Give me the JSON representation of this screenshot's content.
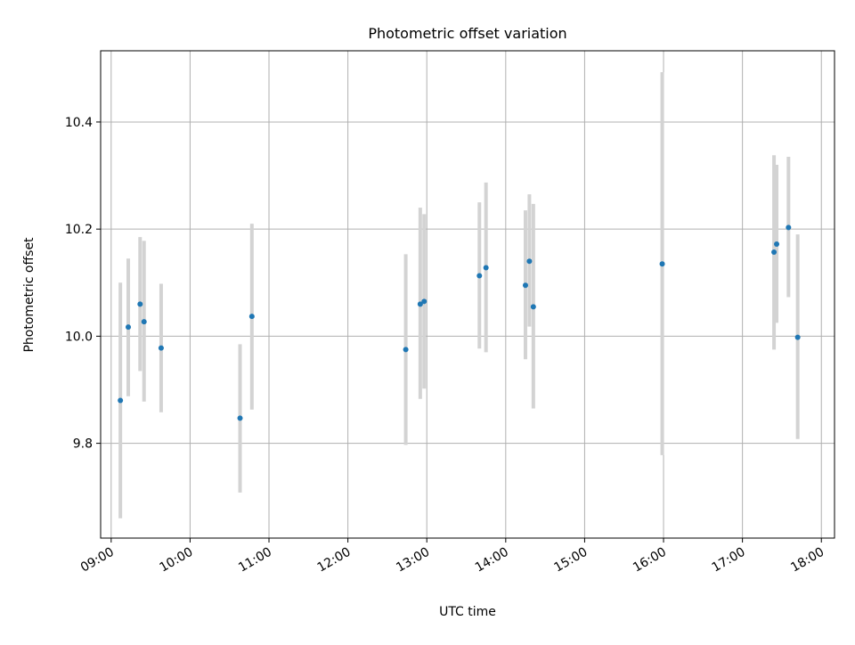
{
  "chart_data": {
    "type": "scatter",
    "title": "Photometric offset variation",
    "xlabel": "UTC time",
    "ylabel": "Photometric offset",
    "x_ticks": [
      "09:00",
      "10:00",
      "11:00",
      "12:00",
      "13:00",
      "14:00",
      "15:00",
      "16:00",
      "17:00",
      "18:00"
    ],
    "y_ticks": [
      "9.8",
      "10.0",
      "10.2",
      "10.4"
    ],
    "xlim": [
      "08:52",
      "18:10"
    ],
    "ylim": [
      9.623,
      10.533
    ],
    "grid": true,
    "colors": {
      "point": "#1f77b4",
      "errorbar": "#d3d3d3",
      "grid": "#b0b0b0"
    },
    "points": [
      {
        "x": "09:07",
        "y": 9.88,
        "yerr_low": 9.66,
        "yerr_high": 10.1
      },
      {
        "x": "09:13",
        "y": 10.017,
        "yerr_low": 9.888,
        "yerr_high": 10.145
      },
      {
        "x": "09:22",
        "y": 10.06,
        "yerr_low": 9.935,
        "yerr_high": 10.185
      },
      {
        "x": "09:25",
        "y": 10.027,
        "yerr_low": 9.878,
        "yerr_high": 10.178
      },
      {
        "x": "09:38",
        "y": 9.978,
        "yerr_low": 9.858,
        "yerr_high": 10.098
      },
      {
        "x": "10:38",
        "y": 9.847,
        "yerr_low": 9.708,
        "yerr_high": 9.985
      },
      {
        "x": "10:47",
        "y": 10.037,
        "yerr_low": 9.863,
        "yerr_high": 10.21
      },
      {
        "x": "12:44",
        "y": 9.975,
        "yerr_low": 9.797,
        "yerr_high": 10.153
      },
      {
        "x": "12:55",
        "y": 10.06,
        "yerr_low": 9.883,
        "yerr_high": 10.24
      },
      {
        "x": "12:58",
        "y": 10.065,
        "yerr_low": 9.902,
        "yerr_high": 10.228
      },
      {
        "x": "13:40",
        "y": 10.113,
        "yerr_low": 9.977,
        "yerr_high": 10.25
      },
      {
        "x": "13:45",
        "y": 10.128,
        "yerr_low": 9.97,
        "yerr_high": 10.287
      },
      {
        "x": "14:15",
        "y": 10.095,
        "yerr_low": 9.957,
        "yerr_high": 10.235
      },
      {
        "x": "14:18",
        "y": 10.14,
        "yerr_low": 10.018,
        "yerr_high": 10.265
      },
      {
        "x": "14:21",
        "y": 10.055,
        "yerr_low": 9.865,
        "yerr_high": 10.247
      },
      {
        "x": "15:59",
        "y": 10.135,
        "yerr_low": 9.778,
        "yerr_high": 10.493
      },
      {
        "x": "17:24",
        "y": 10.157,
        "yerr_low": 9.975,
        "yerr_high": 10.338
      },
      {
        "x": "17:26",
        "y": 10.172,
        "yerr_low": 10.025,
        "yerr_high": 10.32
      },
      {
        "x": "17:35",
        "y": 10.203,
        "yerr_low": 10.073,
        "yerr_high": 10.335
      },
      {
        "x": "17:42",
        "y": 9.998,
        "yerr_low": 9.808,
        "yerr_high": 10.19
      }
    ]
  }
}
